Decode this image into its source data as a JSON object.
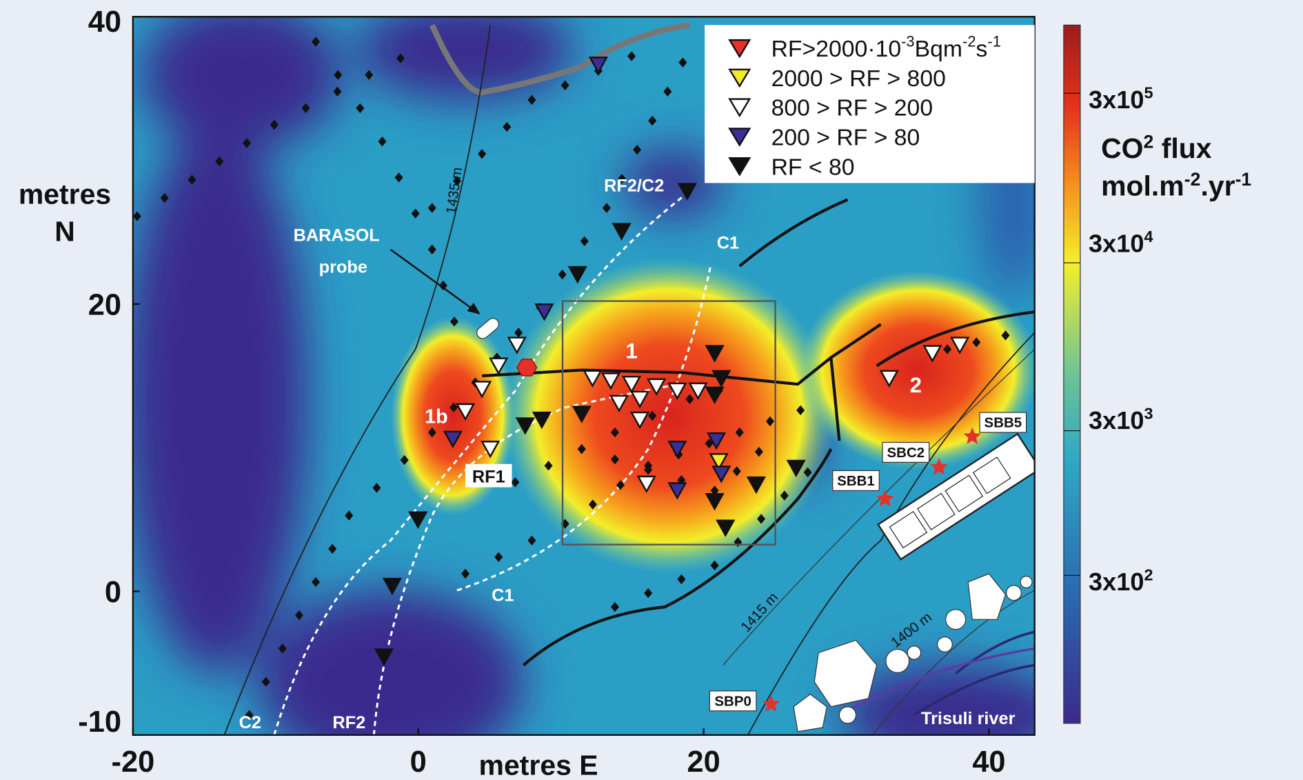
{
  "axes": {
    "xlabel": "metres E",
    "ylabel": [
      "metres",
      "N"
    ],
    "xlim": [
      -20,
      43.2
    ],
    "xticks": [
      -20,
      0,
      20,
      40
    ],
    "ylim": [
      -10,
      40
    ],
    "yticks": [
      -10,
      0,
      20,
      40
    ]
  },
  "annotations": {
    "rf2_c2": "RF2/C2",
    "c1_top": "C1",
    "barasol": "BARASOL",
    "probe": "probe",
    "contour_1435": "1435 m",
    "zone_1": "1",
    "zone_1b": "1b",
    "rf1": "RF1",
    "zone_2": "2",
    "c1_bottom": "C1",
    "contour_1415": "1415 m",
    "contour_1400": "1400 m",
    "river": "Trisuli river",
    "c2": "C2",
    "rf2": "RF2"
  },
  "stations": [
    {
      "label": "SBB5"
    },
    {
      "label": "SBC2"
    },
    {
      "label": "SBB1"
    },
    {
      "label": "SBP0"
    }
  ],
  "legend": [
    {
      "text": [
        "RF>2000·10",
        "-3",
        "Bqm",
        "-2",
        "s",
        "-1"
      ],
      "color": "#e8312a"
    },
    {
      "text": [
        "2000 > RF > 800"
      ],
      "color": "#f1ea2a"
    },
    {
      "text": [
        "800 > RF > 200"
      ],
      "color": "#ffffff"
    },
    {
      "text": [
        "200 > RF > 80"
      ],
      "color": "#3b2f96"
    },
    {
      "text": [
        "RF < 80"
      ],
      "color": "#111111"
    }
  ],
  "colorbar": {
    "title": [
      [
        "CO",
        "2",
        " flux"
      ],
      [
        "mol.m",
        "-2",
        ".yr",
        "-1"
      ]
    ],
    "labels": [
      [
        "3x10",
        "5"
      ],
      [
        "3x10",
        "4"
      ],
      [
        "3x10",
        "3"
      ],
      [
        "3x10",
        "2"
      ]
    ]
  }
}
